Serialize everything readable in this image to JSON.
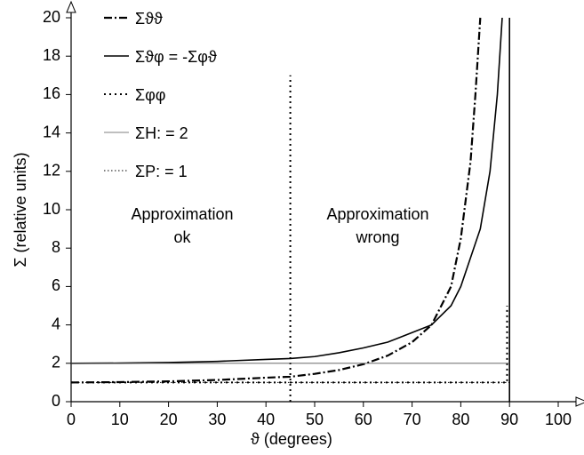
{
  "chart_data": {
    "type": "line",
    "xlabel": "ϑ (degrees)",
    "ylabel": "Σ (relative units)",
    "xlim": [
      0,
      100
    ],
    "xticks": [
      0,
      10,
      20,
      30,
      40,
      50,
      60,
      70,
      80,
      90,
      100
    ],
    "ylim": [
      0,
      20
    ],
    "yticks": [
      0,
      2,
      4,
      6,
      8,
      10,
      12,
      14,
      16,
      18,
      20
    ],
    "grid": false,
    "legend": "top-left",
    "series": [
      {
        "name": "Σϑϑ",
        "color": "#000000",
        "style": "dash-dot",
        "x": [
          0,
          10,
          20,
          30,
          40,
          45,
          50,
          55,
          60,
          65,
          70,
          74,
          78,
          80,
          82,
          83,
          84
        ],
        "values": [
          1,
          1.02,
          1.06,
          1.13,
          1.25,
          1.3,
          1.45,
          1.65,
          1.95,
          2.4,
          3.1,
          4,
          6,
          8.5,
          12.5,
          16,
          20
        ]
      },
      {
        "name": "Σϑφ = -Σφϑ",
        "color": "#000000",
        "style": "solid",
        "x": [
          0,
          10,
          20,
          30,
          40,
          45,
          50,
          55,
          60,
          65,
          70,
          74,
          78,
          80,
          82,
          84,
          86,
          87.5,
          88.5,
          89.5,
          90,
          90
        ],
        "values": [
          2,
          2.01,
          2.04,
          2.1,
          2.2,
          2.25,
          2.35,
          2.55,
          2.8,
          3.1,
          3.6,
          4,
          5,
          6,
          7.5,
          9,
          12,
          16,
          20,
          null,
          20,
          0
        ]
      },
      {
        "name": "Σφφ",
        "color": "#000000",
        "style": "dotted",
        "x": [
          0,
          89.5,
          89.5
        ],
        "values": [
          1,
          1,
          5
        ]
      },
      {
        "name": "ΣH: = 2",
        "color": "#555555",
        "style": "thin",
        "x": [
          0,
          90
        ],
        "values": [
          2,
          2
        ]
      },
      {
        "name": "ΣP: = 1",
        "color": "#000000",
        "style": "thin-dotted",
        "x": [
          0,
          90
        ],
        "values": [
          1,
          1
        ]
      }
    ],
    "vlines": [
      {
        "x": 45,
        "y_top": 17
      }
    ],
    "annotations": [
      [
        "Approximation",
        "ok"
      ],
      [
        "Approximation",
        "wrong"
      ]
    ]
  }
}
